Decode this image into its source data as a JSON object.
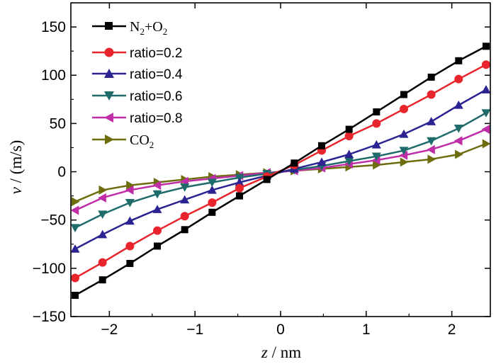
{
  "chart_data": {
    "type": "line",
    "title": "",
    "xlabel_var": "z",
    "xlabel_unit": " / nm",
    "ylabel_var": "v",
    "ylabel_unit": " / (m/s)",
    "xlim": [
      -2.45,
      2.45
    ],
    "ylim": [
      -150,
      175
    ],
    "xticks": [
      -2,
      -1,
      0,
      1,
      2
    ],
    "xtick_labels": [
      "−2",
      "−1",
      "0",
      "1",
      "2"
    ],
    "yticks": [
      -150,
      -100,
      -50,
      0,
      50,
      100,
      150
    ],
    "ytick_labels": [
      "−150",
      "−100",
      "−50",
      "0",
      "50",
      "100",
      "150"
    ],
    "x": [
      -2.4,
      -2.08,
      -1.76,
      -1.44,
      -1.12,
      -0.8,
      -0.48,
      -0.16,
      0.16,
      0.48,
      0.8,
      1.12,
      1.44,
      1.76,
      2.08,
      2.4
    ],
    "legend_position": "top-left",
    "series": [
      {
        "name": "N2+O2",
        "label_main": "N",
        "sub1": "2",
        "label_mid": "+O",
        "sub2": "2",
        "color": "#000000",
        "marker": "square",
        "values": [
          -128,
          -112,
          -95,
          -77,
          -60,
          -42,
          -25,
          -8,
          9,
          27,
          44,
          62,
          80,
          98,
          115,
          130
        ]
      },
      {
        "name": "ratio=0.2",
        "label": "ratio=0.2",
        "color": "#e8242c",
        "marker": "circle",
        "values": [
          -110,
          -94,
          -77,
          -61,
          -46,
          -32,
          -17,
          -5,
          7,
          22,
          37,
          50,
          65,
          80,
          96,
          111
        ]
      },
      {
        "name": "ratio=0.4",
        "label": "ratio=0.4",
        "color": "#2b2391",
        "marker": "triangle-up",
        "values": [
          -80,
          -65,
          -51,
          -39,
          -29,
          -19,
          -11,
          -4,
          3,
          10,
          18,
          28,
          39,
          52,
          69,
          85
        ]
      },
      {
        "name": "ratio=0.6",
        "label": "ratio=0.6",
        "color": "#1f6b6b",
        "marker": "triangle-down",
        "values": [
          -58,
          -44,
          -32,
          -23,
          -16,
          -11,
          -6,
          -2,
          2,
          6,
          11,
          16,
          22,
          32,
          45,
          61
        ]
      },
      {
        "name": "ratio=0.8",
        "label": "ratio=0.8",
        "color": "#bf2ea6",
        "marker": "triangle-left",
        "values": [
          -40,
          -27,
          -19,
          -14,
          -10,
          -7,
          -4,
          -1,
          1,
          4,
          8,
          12,
          17,
          23,
          32,
          44
        ]
      },
      {
        "name": "CO2",
        "label_main": "CO",
        "sub1": "2",
        "color": "#6d6d0e",
        "marker": "triangle-right",
        "values": [
          -31,
          -19,
          -14,
          -11,
          -8,
          -5,
          -3,
          -1,
          1,
          3,
          5,
          7,
          10,
          13,
          18,
          29
        ]
      }
    ]
  }
}
